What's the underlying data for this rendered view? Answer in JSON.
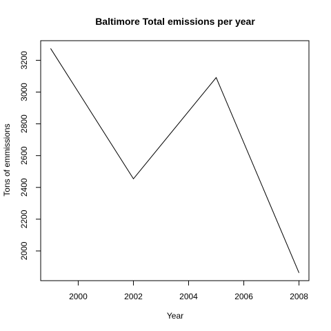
{
  "chart_data": {
    "type": "line",
    "title": "Baltimore Total emissions per year",
    "xlabel": "Year",
    "ylabel": "Tons of emmissions",
    "x": [
      1999,
      2002,
      2005,
      2008
    ],
    "series": [
      {
        "values": [
          3274.18,
          2453.92,
          3091.35,
          1862.28
        ]
      }
    ],
    "xticks": [
      2000,
      2002,
      2004,
      2006,
      2008
    ],
    "yticks": [
      2000,
      2200,
      2400,
      2600,
      2800,
      3000,
      3200
    ],
    "xlim": [
      1998.64,
      2008.36
    ],
    "ylim": [
      1813.08,
      3323.38
    ],
    "grid": false,
    "colors": {
      "line": "#000000",
      "axis": "#000000",
      "background": "#ffffff"
    }
  }
}
